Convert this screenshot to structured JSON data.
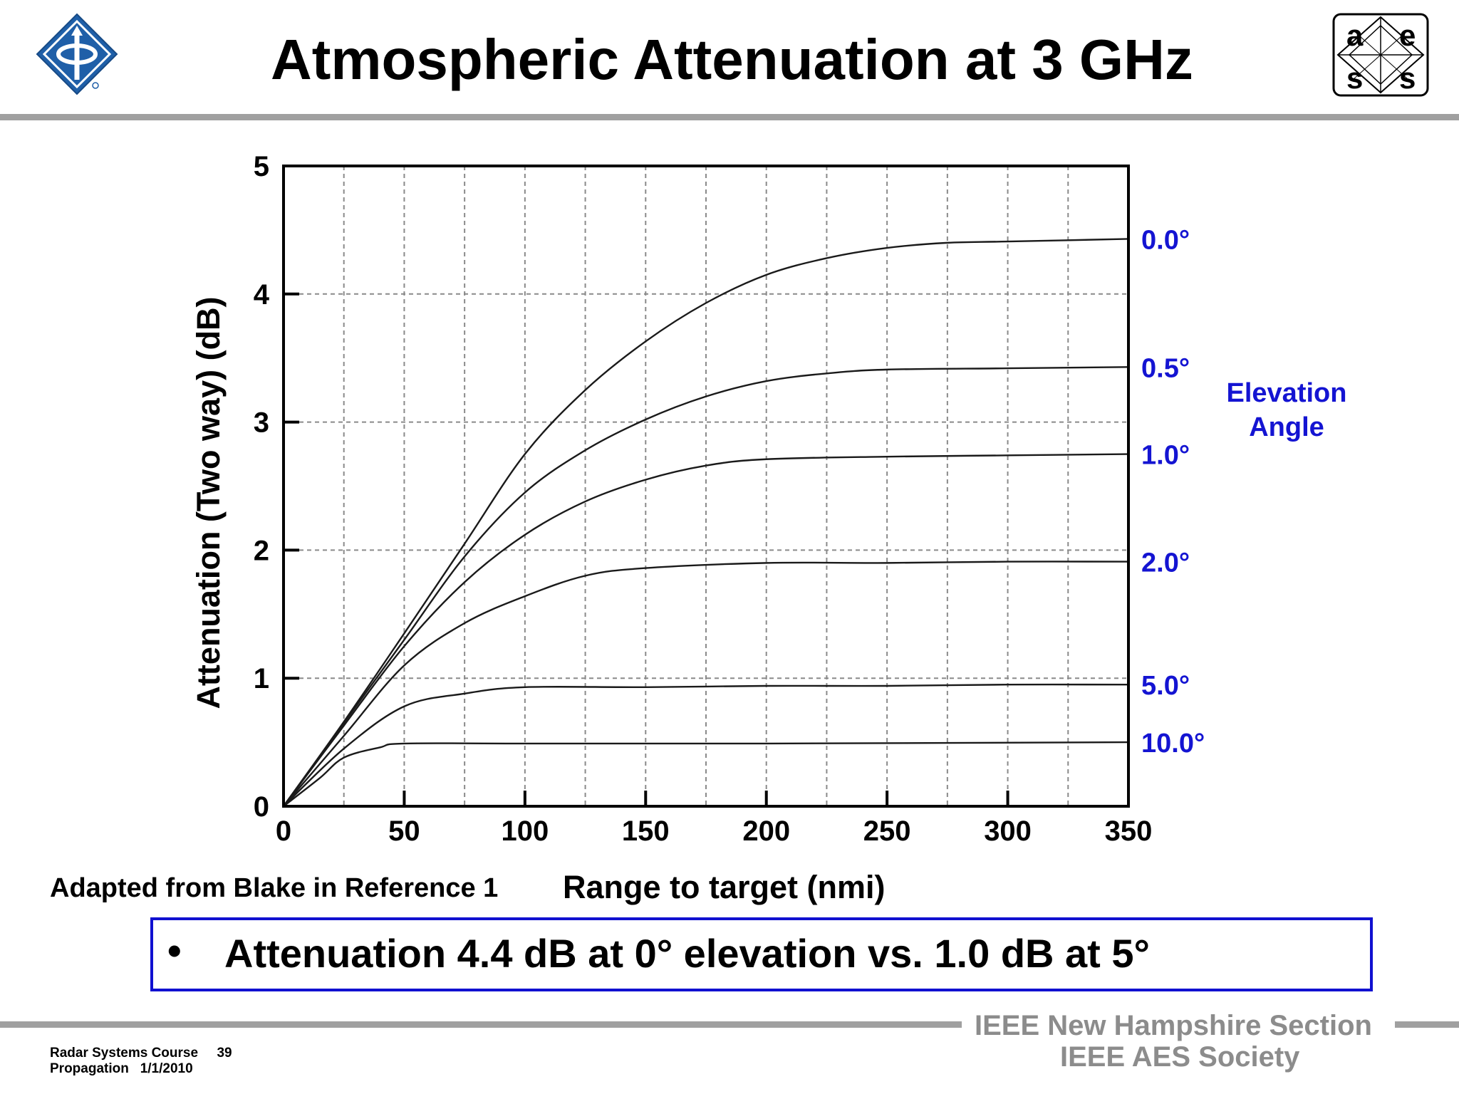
{
  "slide": {
    "title": "Atmospheric Attenuation at 3 GHz",
    "caption": "Adapted from Blake in Reference 1",
    "bullet": "Attenuation 4.4 dB at 0° elevation vs. 1.0 dB at 5°",
    "footer": {
      "course": "Radar Systems Course",
      "page": "39",
      "topic": "Propagation",
      "date": "1/1/2010",
      "org1": "IEEE New Hampshire Section",
      "org2": "IEEE AES Society"
    },
    "logos": {
      "left": "ieee-diamond-logo",
      "right_letters": [
        "a",
        "e",
        "s",
        "s"
      ]
    }
  },
  "colors": {
    "curve": "#1a1a1a",
    "angle_label": "#1414d2",
    "callout_border": "#1010d0",
    "rule": "#a0a0a0",
    "footer_org": "#8c8c8c",
    "logo_blue": "#1f5fa8"
  },
  "chart_data": {
    "type": "line",
    "title": "Atmospheric Attenuation at 3 GHz",
    "xlabel": "Range to target (nmi)",
    "ylabel": "Attenuation (Two way) (dB)",
    "xlim": [
      0,
      350
    ],
    "ylim": [
      0,
      5
    ],
    "x_ticks": [
      0,
      50,
      100,
      150,
      200,
      250,
      300,
      350
    ],
    "y_ticks": [
      0,
      1,
      2,
      3,
      4,
      5
    ],
    "grid": true,
    "legend_title": "Elevation Angle",
    "legend_placement": "right, labels at curve ends",
    "series": [
      {
        "name": "0.0°",
        "points": [
          [
            0,
            0
          ],
          [
            25,
            0.66
          ],
          [
            50,
            1.35
          ],
          [
            75,
            2.05
          ],
          [
            100,
            2.75
          ],
          [
            125,
            3.25
          ],
          [
            150,
            3.63
          ],
          [
            175,
            3.93
          ],
          [
            200,
            4.15
          ],
          [
            225,
            4.28
          ],
          [
            250,
            4.36
          ],
          [
            275,
            4.4
          ],
          [
            300,
            4.41
          ],
          [
            350,
            4.43
          ]
        ]
      },
      {
        "name": "0.5°",
        "points": [
          [
            0,
            0
          ],
          [
            25,
            0.65
          ],
          [
            50,
            1.3
          ],
          [
            75,
            1.95
          ],
          [
            100,
            2.45
          ],
          [
            125,
            2.78
          ],
          [
            150,
            3.02
          ],
          [
            175,
            3.2
          ],
          [
            200,
            3.32
          ],
          [
            225,
            3.38
          ],
          [
            250,
            3.41
          ],
          [
            300,
            3.42
          ],
          [
            350,
            3.43
          ]
        ]
      },
      {
        "name": "1.0°",
        "points": [
          [
            0,
            0
          ],
          [
            25,
            0.63
          ],
          [
            50,
            1.25
          ],
          [
            75,
            1.75
          ],
          [
            100,
            2.12
          ],
          [
            125,
            2.38
          ],
          [
            150,
            2.55
          ],
          [
            175,
            2.66
          ],
          [
            200,
            2.71
          ],
          [
            250,
            2.73
          ],
          [
            300,
            2.74
          ],
          [
            350,
            2.75
          ]
        ]
      },
      {
        "name": "2.0°",
        "points": [
          [
            0,
            0
          ],
          [
            25,
            0.55
          ],
          [
            50,
            1.1
          ],
          [
            75,
            1.43
          ],
          [
            100,
            1.64
          ],
          [
            125,
            1.8
          ],
          [
            150,
            1.86
          ],
          [
            200,
            1.9
          ],
          [
            250,
            1.9
          ],
          [
            300,
            1.91
          ],
          [
            350,
            1.91
          ]
        ]
      },
      {
        "name": "5.0°",
        "points": [
          [
            0,
            0
          ],
          [
            25,
            0.45
          ],
          [
            50,
            0.78
          ],
          [
            75,
            0.88
          ],
          [
            100,
            0.93
          ],
          [
            150,
            0.93
          ],
          [
            200,
            0.94
          ],
          [
            250,
            0.94
          ],
          [
            300,
            0.95
          ],
          [
            350,
            0.95
          ]
        ]
      },
      {
        "name": "10.0°",
        "points": [
          [
            0,
            0
          ],
          [
            15,
            0.22
          ],
          [
            25,
            0.38
          ],
          [
            40,
            0.46
          ],
          [
            50,
            0.49
          ],
          [
            100,
            0.49
          ],
          [
            200,
            0.49
          ],
          [
            350,
            0.5
          ]
        ]
      }
    ]
  }
}
